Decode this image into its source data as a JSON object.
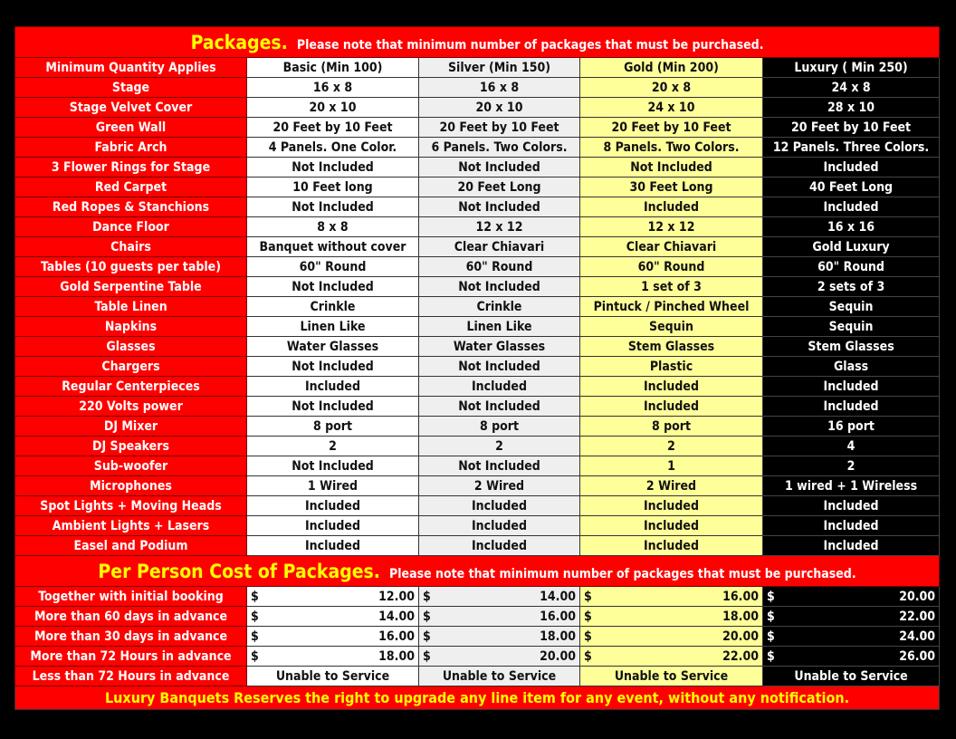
{
  "packages": {
    "title": "Packages.",
    "note": "Please note that minimum number of packages that must be purchased.",
    "header": {
      "label": "Minimum Quantity Applies",
      "cols": [
        "Basic  (Min 100)",
        "Silver (Min 150)",
        "Gold (Min 200)",
        "Luxury ( Min 250)"
      ]
    },
    "rows": [
      {
        "label": "Stage",
        "values": [
          "16 x 8",
          "16 x 8",
          "20 x 8",
          "24 x 8"
        ]
      },
      {
        "label": "Stage Velvet Cover",
        "values": [
          "20 x 10",
          "20 x 10",
          "24 x 10",
          "28 x 10"
        ]
      },
      {
        "label": "Green Wall",
        "values": [
          "20 Feet by 10 Feet",
          "20 Feet by 10 Feet",
          "20 Feet by 10 Feet",
          "20 Feet by 10 Feet"
        ]
      },
      {
        "label": "Fabric Arch",
        "values": [
          "4 Panels. One Color.",
          "6 Panels. Two Colors.",
          "8 Panels. Two Colors.",
          "12 Panels. Three Colors."
        ]
      },
      {
        "label": "3 Flower Rings for Stage",
        "values": [
          "Not Included",
          "Not Included",
          "Not Included",
          "Included"
        ]
      },
      {
        "label": "Red Carpet",
        "values": [
          "10 Feet long",
          "20 Feet Long",
          "30 Feet Long",
          "40 Feet Long"
        ]
      },
      {
        "label": "Red Ropes & Stanchions",
        "values": [
          "Not Included",
          "Not Included",
          "Included",
          "Included"
        ]
      },
      {
        "label": "Dance Floor",
        "values": [
          "8 x 8",
          "12 x 12",
          "12 x 12",
          "16 x 16"
        ]
      },
      {
        "label": "Chairs",
        "values": [
          "Banquet without cover",
          "Clear Chiavari",
          "Clear Chiavari",
          "Gold Luxury"
        ]
      },
      {
        "label": "Tables (10 guests per table)",
        "values": [
          "60\" Round",
          "60\" Round",
          "60\" Round",
          "60\" Round"
        ]
      },
      {
        "label": "Gold Serpentine Table",
        "values": [
          "Not Included",
          "Not Included",
          "1 set of 3",
          "2 sets of 3"
        ]
      },
      {
        "label": "Table Linen",
        "values": [
          "Crinkle",
          "Crinkle",
          "Pintuck / Pinched Wheel",
          "Sequin"
        ]
      },
      {
        "label": "Napkins",
        "values": [
          "Linen Like",
          "Linen Like",
          "Sequin",
          "Sequin"
        ]
      },
      {
        "label": "Glasses",
        "values": [
          "Water Glasses",
          "Water Glasses",
          "Stem Glasses",
          "Stem Glasses"
        ]
      },
      {
        "label": "Chargers",
        "values": [
          "Not Included",
          "Not Included",
          "Plastic",
          "Glass"
        ]
      },
      {
        "label": "Regular Centerpieces",
        "values": [
          "Included",
          "Included",
          "Included",
          "Included"
        ]
      },
      {
        "label": "220 Volts power",
        "values": [
          "Not Included",
          "Not Included",
          "Included",
          "Included"
        ]
      },
      {
        "label": "DJ Mixer",
        "values": [
          "8 port",
          "8 port",
          "8 port",
          "16 port"
        ]
      },
      {
        "label": "DJ Speakers",
        "values": [
          "2",
          "2",
          "2",
          "4"
        ]
      },
      {
        "label": "Sub-woofer",
        "values": [
          "Not Included",
          "Not Included",
          "1",
          "2"
        ]
      },
      {
        "label": "Microphones",
        "values": [
          "1 Wired",
          "2 Wired",
          "2 Wired",
          "1 wired + 1 Wireless"
        ]
      },
      {
        "label": "Spot Lights + Moving Heads",
        "values": [
          "Included",
          "Included",
          "Included",
          "Included"
        ]
      },
      {
        "label": "Ambient Lights + Lasers",
        "values": [
          "Included",
          "Included",
          "Included",
          "Included"
        ]
      },
      {
        "label": "Easel and Podium",
        "values": [
          "Included",
          "Included",
          "Included",
          "Included"
        ]
      }
    ]
  },
  "cost": {
    "title": "Per Person Cost of Packages.",
    "note": "Please note that minimum number of packages that must be purchased.",
    "currency": "$",
    "rows": [
      {
        "label": "Together with initial booking",
        "values": [
          "12.00",
          "14.00",
          "16.00",
          "20.00"
        ]
      },
      {
        "label": "More than 60 days in advance",
        "values": [
          "14.00",
          "16.00",
          "18.00",
          "22.00"
        ]
      },
      {
        "label": "More than 30 days in advance",
        "values": [
          "16.00",
          "18.00",
          "20.00",
          "24.00"
        ]
      },
      {
        "label": "More than 72 Hours in advance",
        "values": [
          "18.00",
          "20.00",
          "22.00",
          "26.00"
        ]
      }
    ],
    "last": {
      "label": "Less than 72 Hours in advance",
      "values": [
        "Unable to Service",
        "Unable to Service",
        "Unable to Service",
        "Unable to Service"
      ]
    }
  },
  "footer": "Luxury Banquets Reserves the right to upgrade any line item for any event, without any notification.",
  "colors": {
    "red": "#ff0000",
    "title": "#ffff00",
    "silver": "#efefef",
    "gold": "#ffff99",
    "luxury": "#000000"
  }
}
